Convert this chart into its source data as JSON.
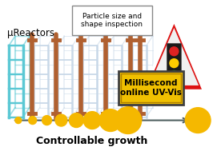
{
  "bg_color": "#ffffff",
  "reactor_color_first": "#5bc8d4",
  "reactor_color_rest": "#c8d8e8",
  "reactor_connector_color": "#b06030",
  "arrow_color": "#506060",
  "particle_color": "#f5b800",
  "triangle_red": "#dd1111",
  "triangle_white": "#f0f0f0",
  "sign_color": "#f0c000",
  "sign_border": "#b08000",
  "sign_border2": "#404040",
  "text_sign": "Millisecond\nonline UV-Vis",
  "text_particle": "Particle size and\nshape inspection",
  "text_reactors": "μReactors",
  "text_growth": "Controllable growth",
  "traffic_red": "#dd2222",
  "traffic_yellow": "#ffcc00",
  "traffic_green": "#22cc22",
  "figsize": [
    2.66,
    1.89
  ],
  "dpi": 100
}
